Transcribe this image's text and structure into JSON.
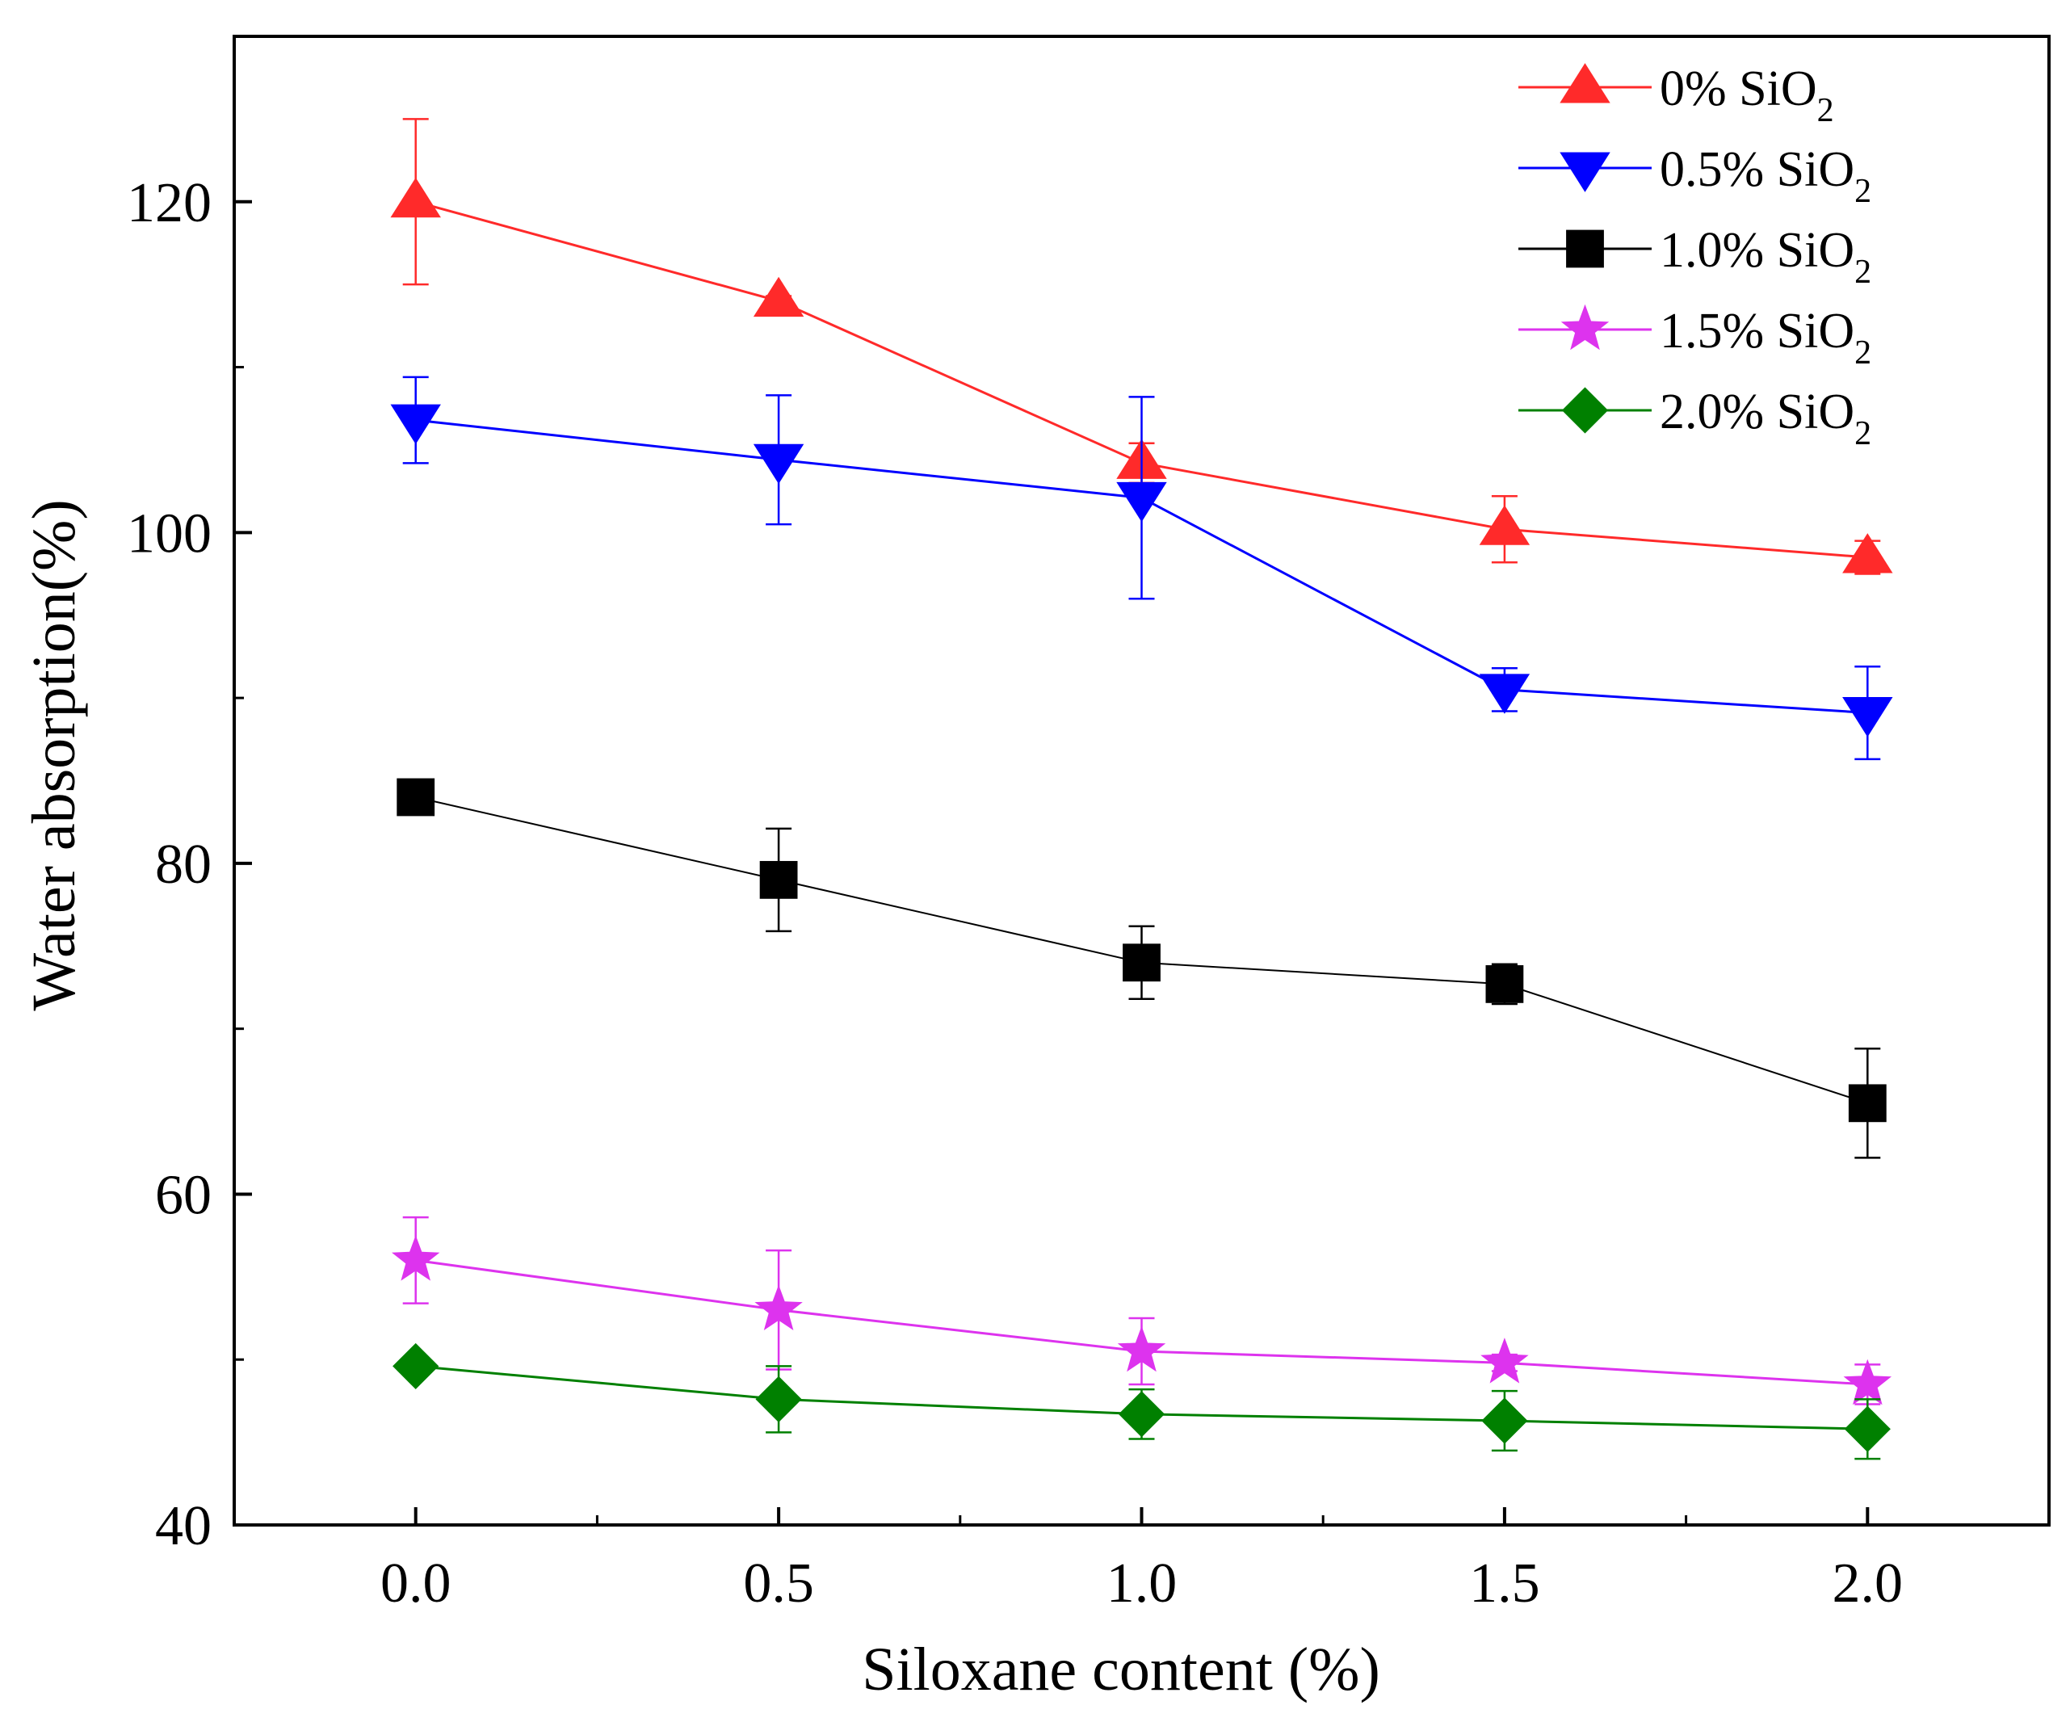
{
  "chart_data": {
    "type": "line",
    "xlabel": "Siloxane content (%)",
    "ylabel": "Water absorption(%)",
    "x": [
      0.0,
      0.5,
      1.0,
      1.5,
      2.0
    ],
    "xticks": [
      "0.0",
      "0.5",
      "1.0",
      "1.5",
      "2.0"
    ],
    "yticks": [
      "40",
      "60",
      "80",
      "100",
      "120"
    ],
    "xlim": [
      -0.25,
      2.25
    ],
    "ylim": [
      40,
      130
    ],
    "legend_position": "top-right",
    "series": [
      {
        "name": "0% SiO2",
        "label_main": "0% SiO",
        "label_sub": "2",
        "color": "#ff2a2a",
        "marker": "triangle-up",
        "values": [
          120,
          114,
          104.2,
          100.2,
          98.5
        ],
        "errors": [
          5,
          0.3,
          1.2,
          2,
          1
        ]
      },
      {
        "name": "0.5% SiO2",
        "label_main": "0.5% SiO",
        "label_sub": "2",
        "color": "#0000ff",
        "marker": "triangle-down",
        "values": [
          106.8,
          104.4,
          102.1,
          90.5,
          89.1
        ],
        "errors": [
          2.6,
          3.9,
          6.1,
          1.3,
          2.8
        ]
      },
      {
        "name": "1.0% SiO2",
        "label_main": "1.0% SiO",
        "label_sub": "2",
        "color": "#000000",
        "marker": "square",
        "values": [
          84,
          79,
          74,
          72.7,
          65.5
        ],
        "errors": [
          1,
          3.1,
          2.2,
          1.2,
          3.3
        ]
      },
      {
        "name": "1.5% SiO2",
        "label_main": "1.5% SiO",
        "label_sub": "2",
        "color": "#dd33ee",
        "marker": "star",
        "values": [
          56,
          53,
          50.5,
          49.8,
          48.5
        ],
        "errors": [
          2.6,
          3.6,
          2,
          0.5,
          1.2
        ]
      },
      {
        "name": "2.0% SiO2",
        "label_main": "2.0% SiO",
        "label_sub": "2",
        "color": "#008000",
        "marker": "diamond",
        "values": [
          49.6,
          47.6,
          46.7,
          46.3,
          45.8
        ],
        "errors": [
          0.5,
          2,
          1.5,
          1.8,
          1.8
        ]
      }
    ]
  }
}
